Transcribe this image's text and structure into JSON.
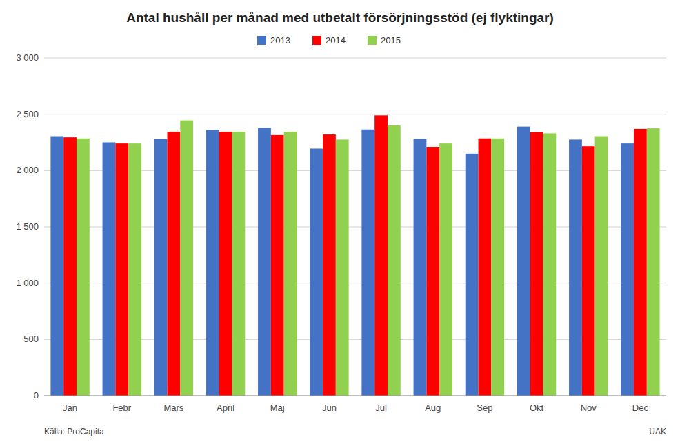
{
  "chart_data": {
    "type": "bar",
    "title": "Antal hushåll per månad med utbetalt försörjningsstöd (ej flyktingar)",
    "categories": [
      "Jan",
      "Febr",
      "Mars",
      "April",
      "Maj",
      "Jun",
      "Jul",
      "Aug",
      "Sep",
      "Okt",
      "Nov",
      "Dec"
    ],
    "series": [
      {
        "name": "2013",
        "color": "#4472C4",
        "values": [
          2305,
          2250,
          2280,
          2360,
          2380,
          2195,
          2365,
          2280,
          2150,
          2390,
          2275,
          2240
        ]
      },
      {
        "name": "2014",
        "color": "#FF0000",
        "values": [
          2295,
          2240,
          2345,
          2345,
          2315,
          2320,
          2490,
          2210,
          2285,
          2340,
          2215,
          2370
        ]
      },
      {
        "name": "2015",
        "color": "#92D050",
        "values": [
          2285,
          2240,
          2445,
          2345,
          2345,
          2275,
          2400,
          2240,
          2285,
          2330,
          2305,
          2375
        ]
      }
    ],
    "ylim": [
      0,
      3000
    ],
    "yticks": [
      0,
      500,
      {
        "value": 1000,
        "label": "1 000"
      },
      {
        "value": 1500,
        "label": "1 500"
      },
      {
        "value": 2000,
        "label": "2 000"
      },
      {
        "value": 2500,
        "label": "2 500"
      },
      {
        "value": 3000,
        "label": "3 000"
      }
    ],
    "grid": true,
    "legend": "top",
    "annotations": [
      "Källa: ProCapita",
      "UAK"
    ]
  }
}
